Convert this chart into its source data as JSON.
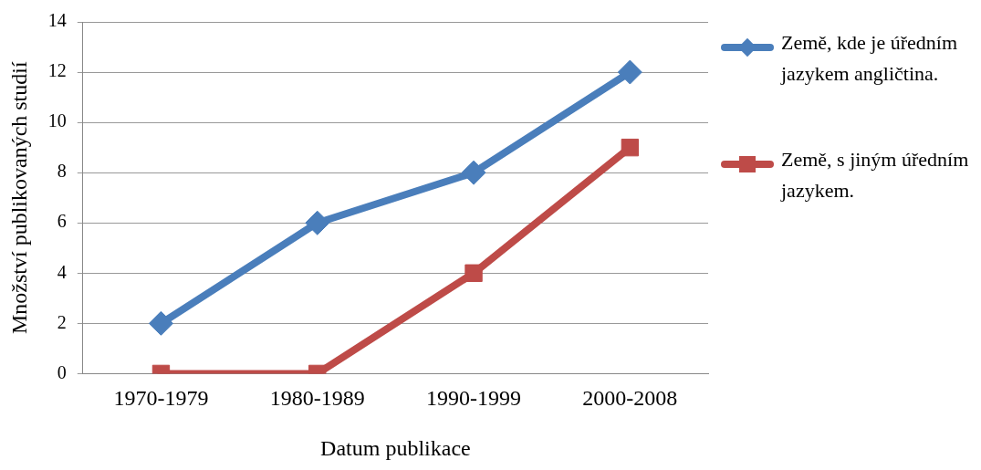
{
  "chart_data": {
    "type": "line",
    "xlabel": "Datum publikace",
    "ylabel": "Množství publikovaných studií",
    "categories": [
      "1970-1979",
      "1980-1989",
      "1990-1999",
      "2000-2008"
    ],
    "series": [
      {
        "name": "Země, kde je úředním jazykem angličtina.",
        "color": "#4a7ebb",
        "marker": "diamond",
        "values": [
          2,
          6,
          8,
          12
        ]
      },
      {
        "name": "Země, s jiným úředním jazykem.",
        "color": "#be4b48",
        "marker": "square",
        "values": [
          0,
          0,
          4,
          9
        ]
      }
    ],
    "ylim": [
      0,
      14
    ],
    "yticks": [
      0,
      2,
      4,
      6,
      8,
      10,
      12,
      14
    ],
    "grid": "y",
    "legend": "right",
    "line_style": "solid"
  }
}
